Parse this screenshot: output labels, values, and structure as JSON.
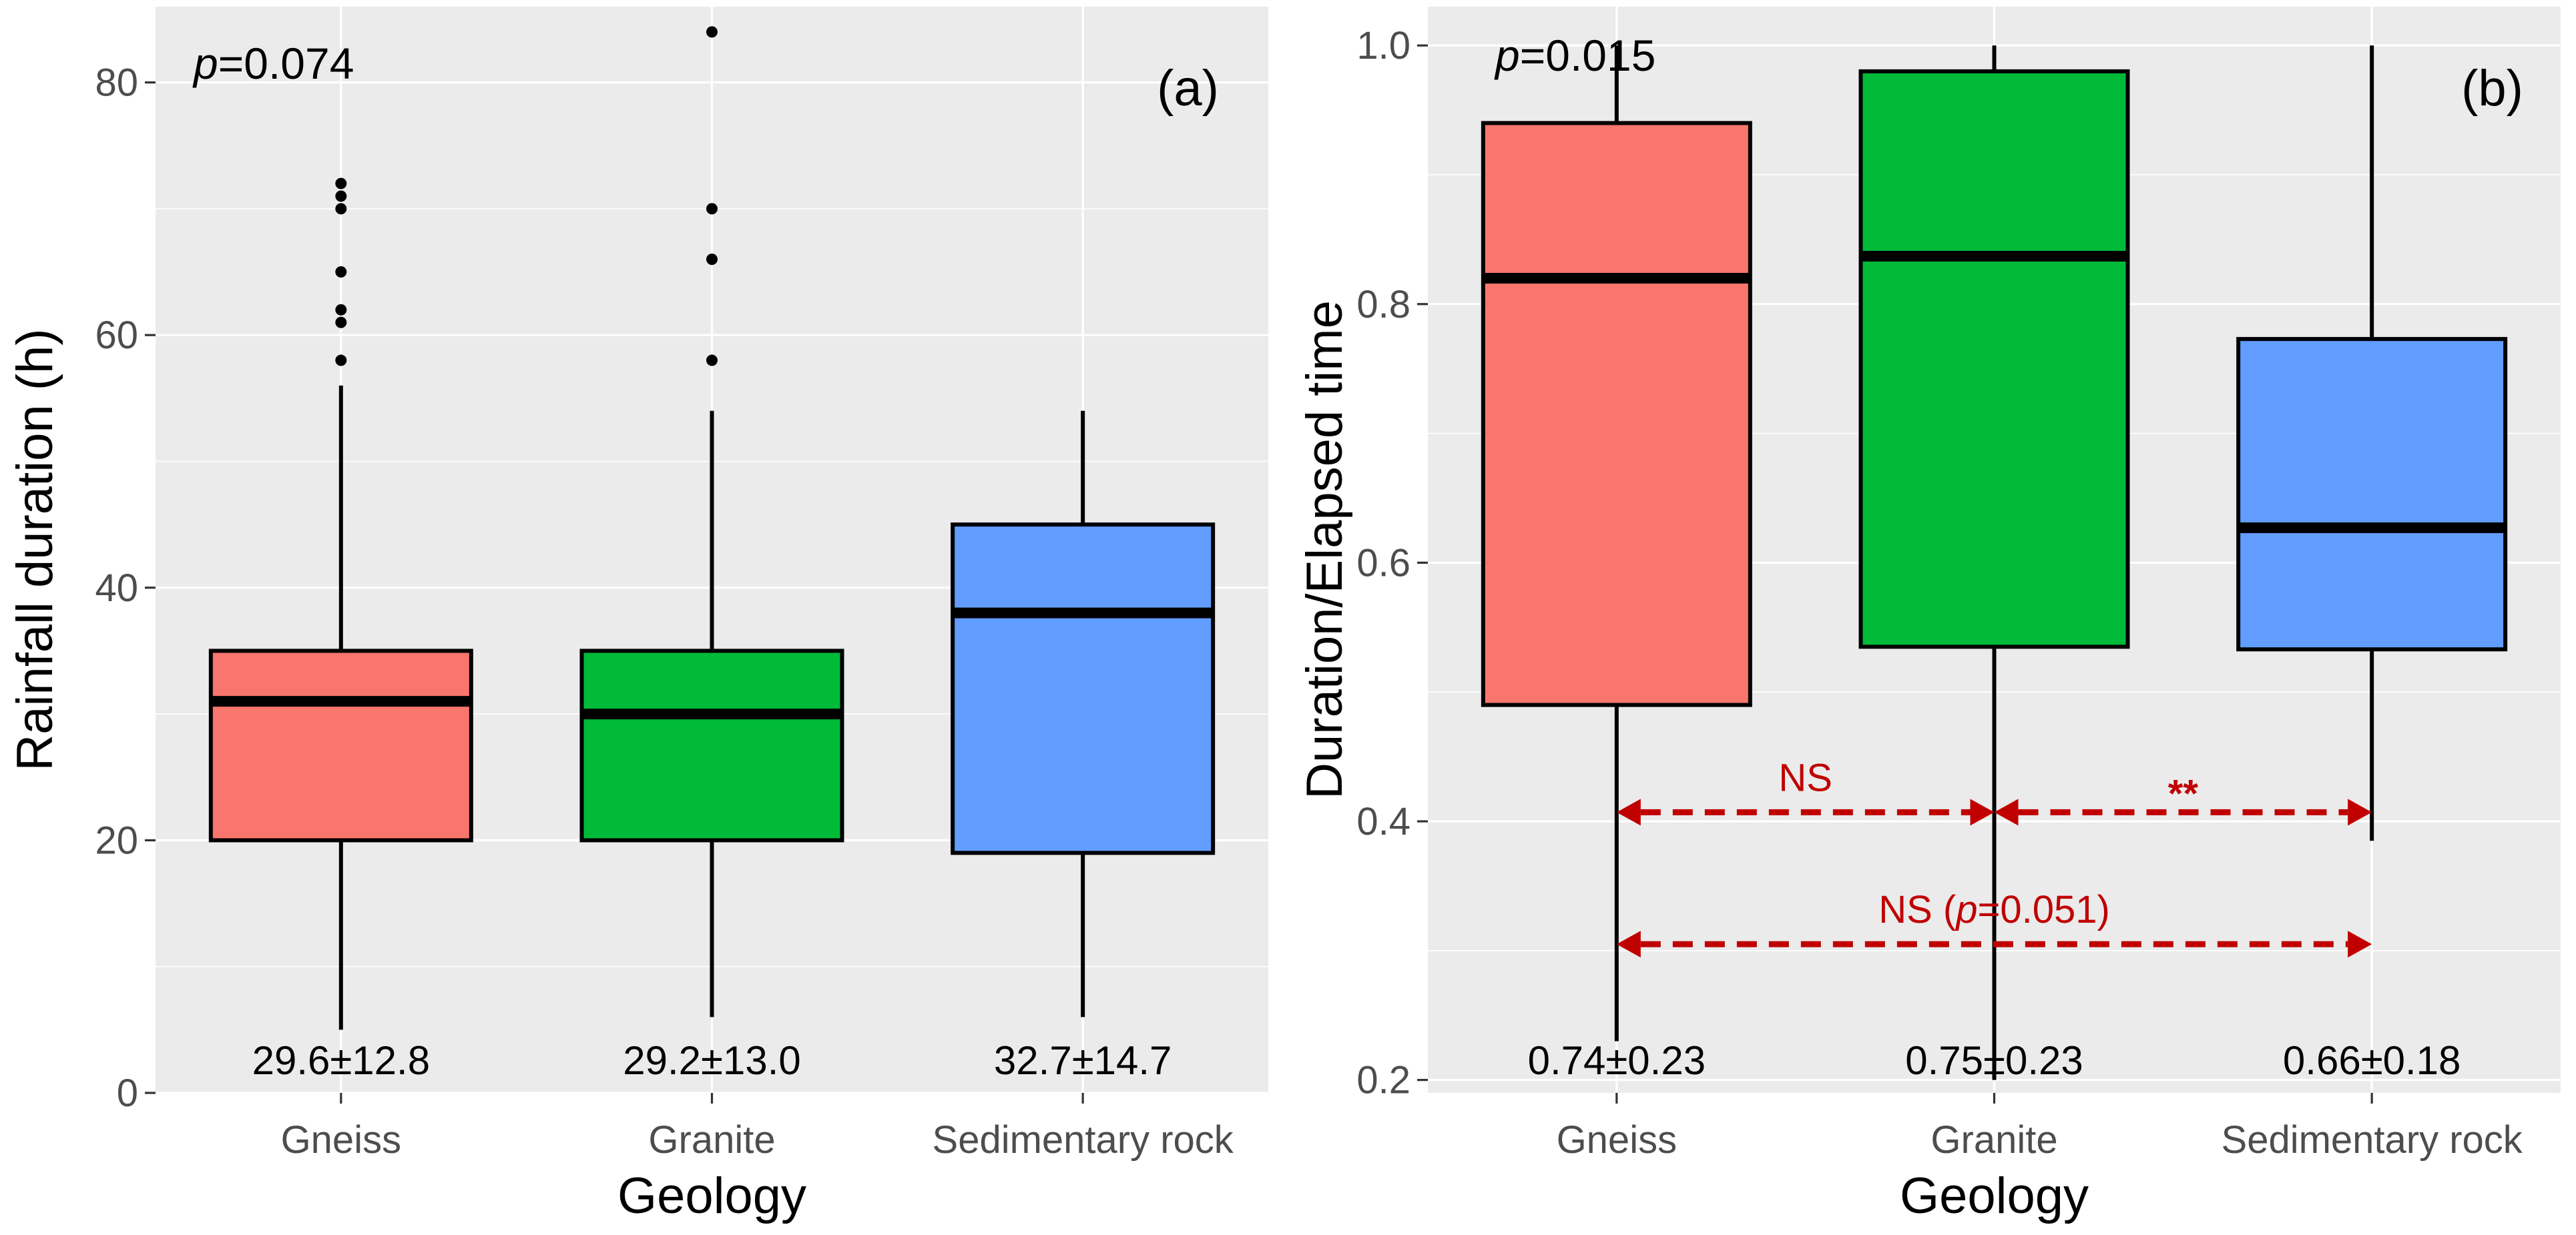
{
  "chart_data": [
    {
      "type": "box",
      "panel_label": "(a)",
      "p_value": "p=0.074",
      "xlabel": "Geology",
      "ylabel": "Rainfall duration (h)",
      "ylim": [
        0,
        86
      ],
      "yticks": [
        0,
        20,
        40,
        60,
        80
      ],
      "categories": [
        "Gneiss",
        "Granite",
        "Sedimentary rock"
      ],
      "colors": [
        "#F8766D",
        "#00BA38",
        "#619CFF"
      ],
      "boxes": [
        {
          "category": "Gneiss",
          "whisker_low": 5,
          "q1": 20,
          "median": 31,
          "q3": 35,
          "whisker_high": 56,
          "outliers": [
            58,
            61,
            62,
            65,
            70,
            71,
            72
          ]
        },
        {
          "category": "Granite",
          "whisker_low": 6,
          "q1": 20,
          "median": 30,
          "q3": 35,
          "whisker_high": 54,
          "outliers": [
            58,
            66,
            70,
            84
          ]
        },
        {
          "category": "Sedimentary rock",
          "whisker_low": 6,
          "q1": 19,
          "median": 38,
          "q3": 45,
          "whisker_high": 54,
          "outliers": []
        }
      ],
      "stats_labels": [
        "29.6±12.8",
        "29.2±13.0",
        "32.7±14.7"
      ],
      "grid": true
    },
    {
      "type": "box",
      "panel_label": "(b)",
      "p_value": "p=0.015",
      "xlabel": "Geology",
      "ylabel": "Duration/Elapsed time",
      "ylim": [
        0.19,
        1.03
      ],
      "yticks": [
        0.2,
        0.4,
        0.6,
        0.8,
        1.0
      ],
      "ytick_labels": [
        "0.2",
        "0.4",
        "0.6",
        "0.8",
        "1.0"
      ],
      "categories": [
        "Gneiss",
        "Granite",
        "Sedimentary rock"
      ],
      "colors": [
        "#F8766D",
        "#00BA38",
        "#619CFF"
      ],
      "boxes": [
        {
          "category": "Gneiss",
          "whisker_low": 0.23,
          "q1": 0.49,
          "median": 0.82,
          "q3": 0.94,
          "whisker_high": 1.0,
          "outliers": []
        },
        {
          "category": "Granite",
          "whisker_low": 0.2,
          "q1": 0.535,
          "median": 0.837,
          "q3": 0.98,
          "whisker_high": 1.0,
          "outliers": []
        },
        {
          "category": "Sedimentary rock",
          "whisker_low": 0.385,
          "q1": 0.533,
          "median": 0.627,
          "q3": 0.773,
          "whisker_high": 1.0,
          "outliers": []
        }
      ],
      "stats_labels": [
        "0.74±0.23",
        "0.75±0.23",
        "0.66±0.18"
      ],
      "comparisons": [
        {
          "from": "Gneiss",
          "to": "Granite",
          "y": 0.407,
          "label": "NS"
        },
        {
          "from": "Granite",
          "to": "Sedimentary rock",
          "y": 0.407,
          "label": "**"
        },
        {
          "from": "Gneiss",
          "to": "Sedimentary rock",
          "y": 0.305,
          "label": "NS (p=0.051)"
        }
      ],
      "grid": true
    }
  ]
}
